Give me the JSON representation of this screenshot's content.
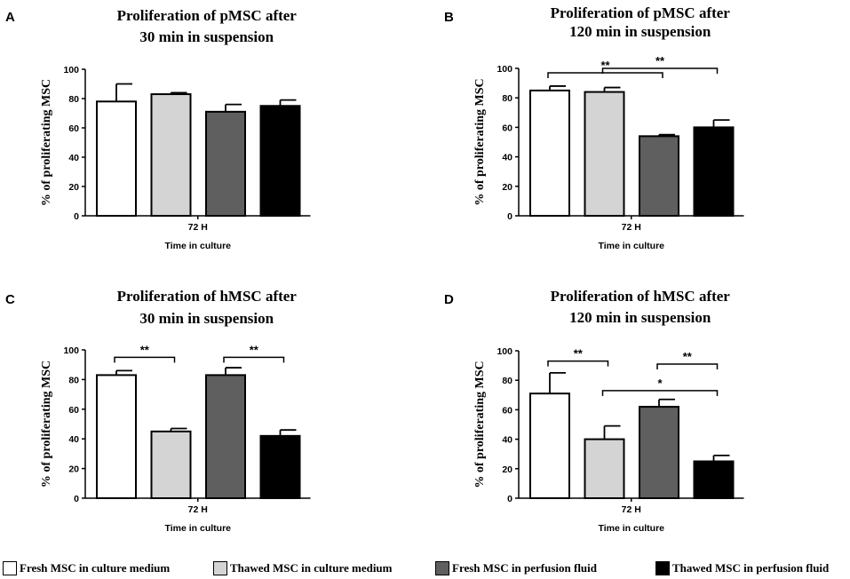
{
  "colors": {
    "fresh_culture": "#ffffff",
    "thawed_culture": "#d4d4d4",
    "fresh_perfusion": "#5f5f5f",
    "thawed_perfusion": "#000000"
  },
  "legend": [
    {
      "label": "Fresh MSC in culture medium",
      "color_key": "fresh_culture"
    },
    {
      "label": "Thawed MSC in culture medium",
      "color_key": "thawed_culture"
    },
    {
      "label": "Fresh MSC in perfusion fluid",
      "color_key": "fresh_perfusion"
    },
    {
      "label": "Thawed MSC in perfusion fluid",
      "color_key": "thawed_perfusion"
    }
  ],
  "chart_data": [
    {
      "panel": "A",
      "type": "bar",
      "title_lines": [
        "Proliferation of pMSC after",
        "30 min in suspension"
      ],
      "ylabel": "% of proliferating MSC",
      "xcategory": "72 H",
      "xlabel": "Time in culture",
      "ylim": [
        0,
        100
      ],
      "yticks": [
        0,
        20,
        40,
        60,
        80,
        100
      ],
      "series": [
        {
          "name": "Fresh MSC in culture medium",
          "value": 78,
          "error": 12
        },
        {
          "name": "Thawed MSC in culture medium",
          "value": 83,
          "error": 1
        },
        {
          "name": "Fresh MSC in perfusion fluid",
          "value": 71,
          "error": 5
        },
        {
          "name": "Thawed MSC in perfusion fluid",
          "value": 75,
          "error": 4
        }
      ],
      "significance": []
    },
    {
      "panel": "B",
      "type": "bar",
      "title_lines": [
        "Proliferation of pMSC after",
        "120 min in suspension"
      ],
      "ylabel": "% of proliferating MSC",
      "xcategory": "72 H",
      "xlabel": "Time in culture",
      "ylim": [
        0,
        100
      ],
      "yticks": [
        0,
        20,
        40,
        60,
        80,
        100
      ],
      "series": [
        {
          "name": "Fresh MSC in culture medium",
          "value": 85,
          "error": 3
        },
        {
          "name": "Thawed MSC in culture medium",
          "value": 84,
          "error": 3
        },
        {
          "name": "Fresh MSC in perfusion fluid",
          "value": 54,
          "error": 1
        },
        {
          "name": "Thawed MSC in perfusion fluid",
          "value": 60,
          "error": 5
        }
      ],
      "significance": [
        {
          "from": 0,
          "to": 2,
          "level": 97,
          "label": "**"
        },
        {
          "from": 1,
          "to": 3,
          "level": 100,
          "label": "**"
        }
      ]
    },
    {
      "panel": "C",
      "type": "bar",
      "title_lines": [
        "Proliferation of hMSC after",
        "30 min in suspension"
      ],
      "ylabel": "% of proliferating MSC",
      "xcategory": "72 H",
      "xlabel": "Time in culture",
      "ylim": [
        0,
        100
      ],
      "yticks": [
        0,
        20,
        40,
        60,
        80,
        100
      ],
      "series": [
        {
          "name": "Fresh MSC in culture medium",
          "value": 83,
          "error": 3
        },
        {
          "name": "Thawed MSC in culture medium",
          "value": 45,
          "error": 2
        },
        {
          "name": "Fresh MSC in perfusion fluid",
          "value": 83,
          "error": 5
        },
        {
          "name": "Thawed MSC in perfusion fluid",
          "value": 42,
          "error": 4
        }
      ],
      "significance": [
        {
          "from": 0,
          "to": 1,
          "level": 95,
          "label": "**"
        },
        {
          "from": 2,
          "to": 3,
          "level": 95,
          "label": "**"
        }
      ]
    },
    {
      "panel": "D",
      "type": "bar",
      "title_lines": [
        "Proliferation of hMSC after",
        "120 min in suspension"
      ],
      "ylabel": "% of proliferating MSC",
      "xcategory": "72 H",
      "xlabel": "Time in culture",
      "ylim": [
        0,
        100
      ],
      "yticks": [
        0,
        20,
        40,
        60,
        80,
        100
      ],
      "series": [
        {
          "name": "Fresh MSC in culture medium",
          "value": 71,
          "error": 14
        },
        {
          "name": "Thawed MSC in culture medium",
          "value": 40,
          "error": 9
        },
        {
          "name": "Fresh MSC in perfusion fluid",
          "value": 62,
          "error": 5
        },
        {
          "name": "Thawed MSC in perfusion fluid",
          "value": 25,
          "error": 4
        }
      ],
      "significance": [
        {
          "from": 0,
          "to": 1,
          "level": 93,
          "label": "**"
        },
        {
          "from": 2,
          "to": 3,
          "level": 91,
          "label": "**"
        },
        {
          "from": 1,
          "to": 3,
          "level": 73,
          "label": "*"
        }
      ]
    }
  ]
}
